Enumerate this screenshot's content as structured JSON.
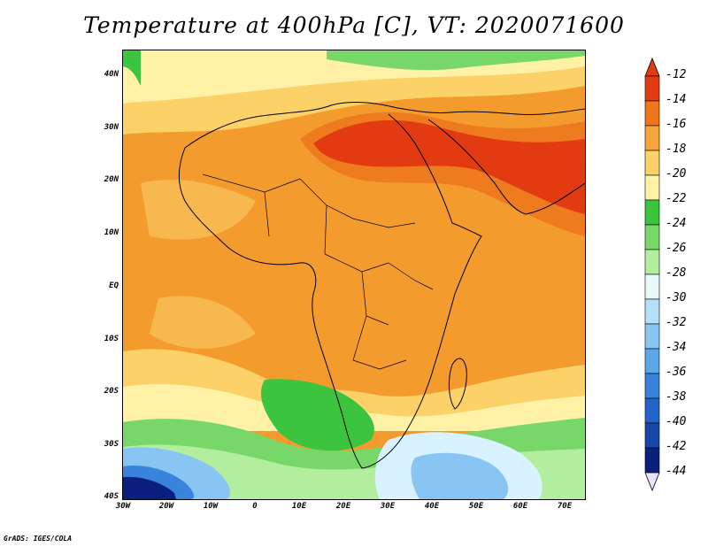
{
  "title": "Temperature at 400hPa [C], VT: 2020071600",
  "footer": "GrADS: IGES/COLA",
  "lat_labels": [
    "40N",
    "30N",
    "20N",
    "10N",
    "EQ",
    "10S",
    "20S",
    "30S",
    "40S"
  ],
  "lon_labels": [
    "30W",
    "20W",
    "10W",
    "0",
    "10E",
    "20E",
    "30E",
    "40E",
    "50E",
    "60E",
    "70E"
  ],
  "colorbar": {
    "labels": [
      "-12",
      "-14",
      "-16",
      "-18",
      "-20",
      "-22",
      "-24",
      "-26",
      "-28",
      "-30",
      "-32",
      "-34",
      "-36",
      "-38",
      "-40",
      "-42",
      "-44"
    ],
    "colors": [
      "#e23b12",
      "#f07518",
      "#f6a53a",
      "#fbd168",
      "#fff2a6",
      "#3dc43f",
      "#77d869",
      "#b3ee9f",
      "#e6fbf7",
      "#b3e0f8",
      "#88c5f2",
      "#5ba7ea",
      "#3a83dc",
      "#2463c8",
      "#1747a8",
      "#0b1f7c"
    ]
  },
  "palette": {
    "orange": "#f49b2e",
    "light_orange": "#f8b850",
    "dark_orange": "#ee7b1d",
    "red": "#e23b12",
    "yellow": "#fbd168",
    "pale": "#fff2a6",
    "green": "#3dc43f",
    "light_green": "#9ee48a",
    "pale_blue": "#d8f3ff",
    "blue": "#5ba7ea",
    "navy": "#0b1f7c"
  }
}
